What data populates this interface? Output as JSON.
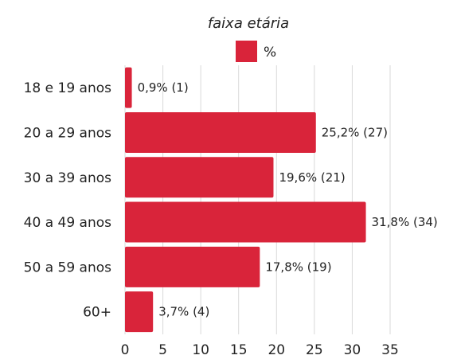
{
  "chart_data": {
    "type": "bar",
    "orientation": "horizontal",
    "title": "faixa etária",
    "categories": [
      "18 e 19 anos",
      "20 a 29 anos",
      "30 a 39 anos",
      "40 a 49 anos",
      "50 a 59 anos",
      "60+"
    ],
    "series": [
      {
        "name": "%",
        "values": [
          0.9,
          25.2,
          19.6,
          31.8,
          17.8,
          3.7
        ],
        "color": "#d9243a"
      }
    ],
    "data_labels": [
      "0,9% (1)",
      "25,2% (27)",
      "19,6% (21)",
      "31,8% (34)",
      "17,8% (19)",
      "3,7% (4)"
    ],
    "xlim": [
      0,
      35
    ],
    "xticks": [
      "0",
      "5",
      "10",
      "15",
      "20",
      "25",
      "30",
      "35"
    ],
    "grid": "vertical",
    "legend_position": "top-center"
  }
}
